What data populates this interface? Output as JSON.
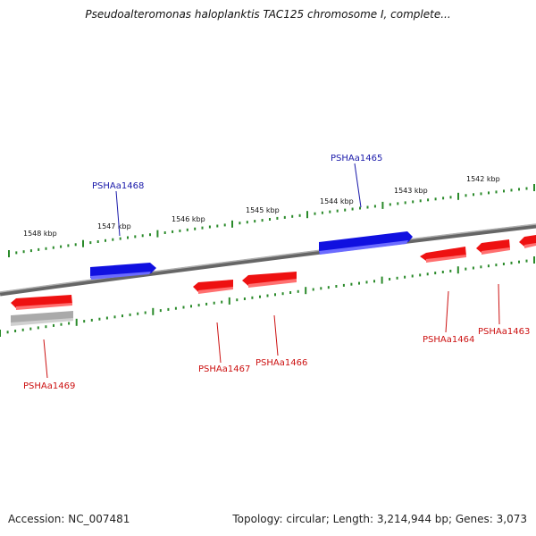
{
  "title": "Pseudoalteromonas haloplanktis TAC125 chromosome I, complete...",
  "footer": {
    "accession": "Accession: NC_007481",
    "summary": "Topology: circular; Length: 3,214,944 bp; Genes: 3,073"
  },
  "scale_labels": [
    "1548 kbp",
    "1547 kbp",
    "1546 kbp",
    "1545 kbp",
    "1544 kbp",
    "1543 kbp",
    "1542 kbp"
  ],
  "gene_labels": [
    {
      "id": "g1468",
      "text": "PSHAa1468",
      "strand": "forward"
    },
    {
      "id": "g1465",
      "text": "PSHAa1465",
      "strand": "forward"
    },
    {
      "id": "g1469",
      "text": "PSHAa1469",
      "strand": "reverse"
    },
    {
      "id": "g1467",
      "text": "PSHAa1467",
      "strand": "reverse"
    },
    {
      "id": "g1466",
      "text": "PSHAa1466",
      "strand": "reverse"
    },
    {
      "id": "g1464",
      "text": "PSHAa1464",
      "strand": "reverse"
    },
    {
      "id": "g1463",
      "text": "PSHAa1463",
      "strand": "reverse"
    }
  ],
  "colors": {
    "forward_gene": "#1010e0",
    "reverse_gene": "#ee1111",
    "other_feature": "#aaaaaa",
    "backbone": "#888888",
    "ticks": "#2a8a2a",
    "forward_label": "#1a1aaa",
    "reverse_label": "#cc1111"
  }
}
